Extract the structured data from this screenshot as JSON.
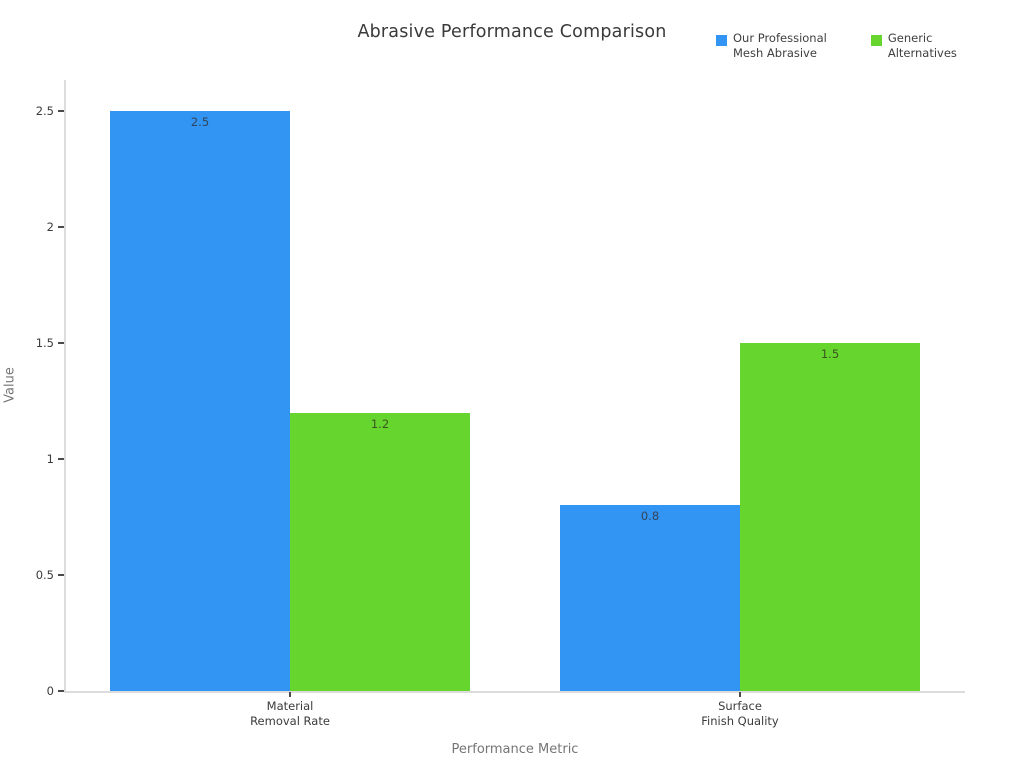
{
  "chart_data": {
    "type": "bar",
    "title": "Abrasive Performance Comparison",
    "xlabel": "Performance Metric",
    "ylabel": "Value",
    "categories": [
      "Material\nRemoval Rate",
      "Surface\nFinish Quality"
    ],
    "series": [
      {
        "name": "Our Professional Mesh Abrasive",
        "legend_label": "Our Professional\nMesh Abrasive",
        "color": "#3294F3",
        "label_color": "#32455c",
        "values": [
          2.5,
          0.8
        ]
      },
      {
        "name": "Generic Alternatives",
        "legend_label": "Generic\nAlternatives",
        "color": "#66D52D",
        "label_color": "#3c5420",
        "values": [
          1.2,
          1.5
        ]
      }
    ],
    "bar_value_labels": [
      "2.5",
      "1.2",
      "0.8",
      "1.5"
    ],
    "yticks": [
      0,
      0.5,
      1,
      1.5,
      2,
      2.5
    ],
    "ylim": [
      0,
      2.63
    ],
    "grid": false,
    "legend_position": "top-right",
    "background_color": "#ffffff",
    "axis_line_color": "#dcdcdc"
  }
}
